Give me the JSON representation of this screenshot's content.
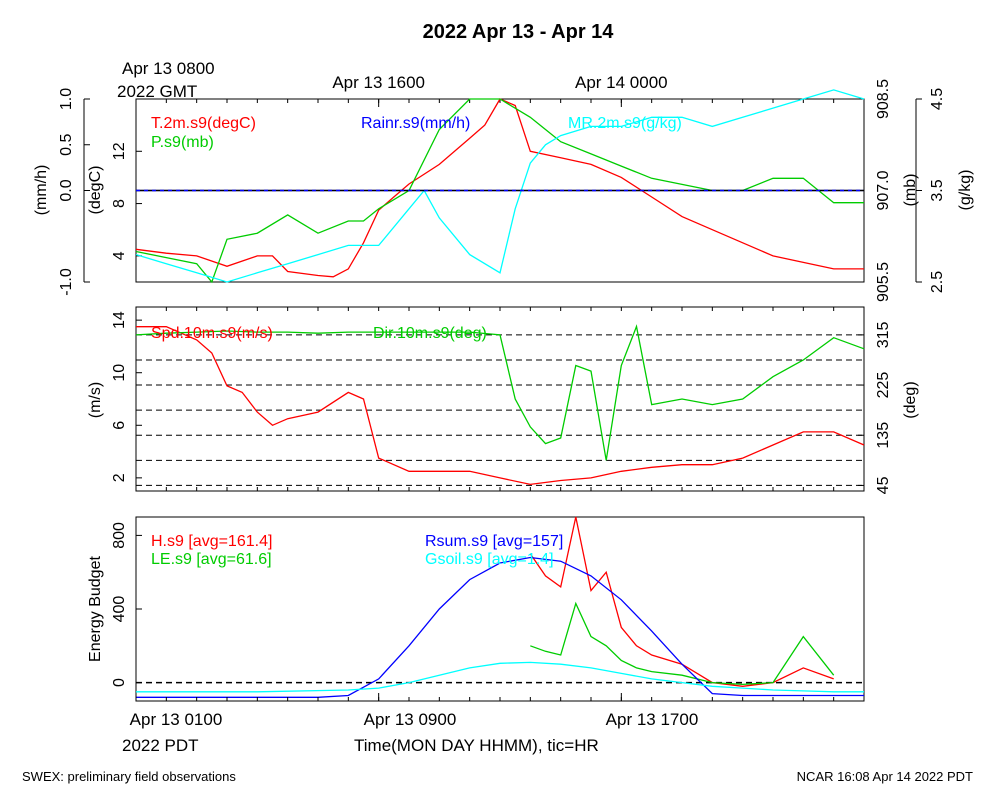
{
  "title": "2022 Apr 13 - Apr 14",
  "top_axis": {
    "start_label": "Apr 13 0800",
    "start_sublabel": "2022 GMT",
    "tick_labels": [
      "Apr 13 1600",
      "Apr 14 0000"
    ]
  },
  "bottom_axis": {
    "tick_labels": [
      "Apr 13 0100",
      "Apr 13 0900",
      "Apr 13 1700"
    ],
    "sublabel": "2022 PDT",
    "xlabel": "Time(MON DAY HHMM), tic=HR"
  },
  "footer": {
    "left": "SWEX: preliminary field observations",
    "right": "NCAR 16:08 Apr 14 2022 PDT"
  },
  "colors": {
    "red": "#ff0000",
    "green": "#00cc00",
    "blue": "#0000ff",
    "cyan": "#00ffff",
    "black": "#000000"
  },
  "chart_data": [
    {
      "type": "line",
      "panel": "top",
      "x_hours_pdt": [
        1,
        25
      ],
      "axes": [
        {
          "side": "left-outer",
          "label": "(mm/h)",
          "range": [
            -1.0,
            1.0
          ],
          "ticks": [
            "-1.0",
            "0.0",
            "0.5",
            "1.0"
          ]
        },
        {
          "side": "left-inner",
          "label": "(degC)",
          "range": [
            2,
            16
          ],
          "ticks": [
            "4",
            "8",
            "12"
          ]
        },
        {
          "side": "right-inner",
          "label": "(mb)",
          "range": [
            905.5,
            908.5
          ],
          "ticks": [
            "905.5",
            "907.0",
            "908.5"
          ]
        },
        {
          "side": "right-outer",
          "label": "(g/kg)",
          "range": [
            2.5,
            4.5
          ],
          "ticks": [
            "2.5",
            "3.5",
            "4.5"
          ]
        }
      ],
      "series": [
        {
          "name": "T.2m.s9(degC)",
          "axis": "degC",
          "x": [
            1,
            2,
            3,
            4,
            5,
            5.5,
            6,
            7,
            7.5,
            8,
            8.5,
            9,
            9.5,
            10,
            11,
            12,
            12.5,
            13,
            13.5,
            14,
            15,
            16,
            17,
            18,
            19,
            20,
            21,
            22,
            23,
            24,
            25
          ],
          "y": [
            4.5,
            4.2,
            4.0,
            3.2,
            4.0,
            4.0,
            2.8,
            2.5,
            2.4,
            3.0,
            5.0,
            7.5,
            8.5,
            9.5,
            11.0,
            13.0,
            14.0,
            16.0,
            15.5,
            12.0,
            11.5,
            11.0,
            10.0,
            8.5,
            7.0,
            6.0,
            5.0,
            4.0,
            3.5,
            3.0,
            3.0
          ]
        },
        {
          "name": "Rainr.s9(mm/h)",
          "axis": "mm/h",
          "x": [
            1,
            25
          ],
          "y": [
            0.0,
            0.0
          ]
        },
        {
          "name": "P.s9(mb)",
          "axis": "mb",
          "x": [
            1,
            2,
            3,
            3.5,
            4,
            5,
            6,
            7,
            8,
            8.5,
            9,
            10,
            11,
            12,
            13,
            14,
            15,
            16,
            17,
            18,
            19,
            20,
            21,
            22,
            23,
            24,
            25
          ],
          "y": [
            906.0,
            905.9,
            905.8,
            905.5,
            906.2,
            906.3,
            906.6,
            906.3,
            906.5,
            906.5,
            906.7,
            907.0,
            908.0,
            908.5,
            908.5,
            908.2,
            907.8,
            907.6,
            907.4,
            907.2,
            907.1,
            907.0,
            907.0,
            907.2,
            907.2,
            906.8,
            906.8
          ]
        },
        {
          "name": "MR.2m.s9(g/kg)",
          "axis": "g/kg",
          "x": [
            1,
            2,
            3,
            4,
            5,
            6,
            7,
            8,
            9,
            10,
            10.5,
            11,
            12,
            13,
            13.5,
            14,
            14.5,
            15,
            16,
            17,
            18,
            19,
            20,
            21,
            22,
            23,
            24,
            25
          ],
          "y": [
            2.8,
            2.7,
            2.6,
            2.5,
            2.6,
            2.7,
            2.8,
            2.9,
            2.9,
            3.3,
            3.5,
            3.2,
            2.8,
            2.6,
            3.3,
            3.8,
            4.0,
            4.1,
            4.2,
            4.2,
            4.3,
            4.3,
            4.2,
            4.3,
            4.4,
            4.5,
            4.6,
            4.5
          ]
        }
      ]
    },
    {
      "type": "line",
      "panel": "middle",
      "x_hours_pdt": [
        1,
        25
      ],
      "axes": [
        {
          "side": "left",
          "label": "(m/s)",
          "range": [
            1,
            15
          ],
          "ticks": [
            "2",
            "6",
            "10",
            "14"
          ]
        },
        {
          "side": "right",
          "label": "(deg)",
          "range": [
            35,
            365
          ],
          "ticks": [
            "45",
            "135",
            "225",
            "315"
          ]
        }
      ],
      "reference_lines_deg": [
        45,
        90,
        135,
        180,
        225,
        270,
        315
      ],
      "series": [
        {
          "name": "Spd.10m.s9(m/s)",
          "axis": "m/s",
          "x": [
            1,
            2,
            3,
            3.5,
            4,
            4.5,
            5,
            5.5,
            6,
            7,
            8,
            8.5,
            9,
            10,
            11,
            12,
            13,
            14,
            15,
            16,
            17,
            18,
            19,
            20,
            21,
            22,
            23,
            24,
            25
          ],
          "y": [
            13.5,
            13.5,
            12.5,
            11.5,
            9.0,
            8.5,
            7.0,
            6.0,
            6.5,
            7.0,
            8.5,
            8.0,
            3.5,
            2.5,
            2.5,
            2.5,
            2.0,
            1.5,
            1.8,
            2.0,
            2.5,
            2.8,
            3.0,
            3.0,
            3.5,
            4.5,
            5.5,
            5.5,
            4.5
          ]
        },
        {
          "name": "Dir.10m.s9(deg)",
          "axis": "deg",
          "x": [
            1,
            2,
            3,
            4,
            5,
            6,
            7,
            8,
            9,
            10,
            11,
            12,
            13,
            13.5,
            14,
            14.5,
            15,
            15.5,
            16,
            16.5,
            17,
            17.5,
            18,
            19,
            20,
            21,
            22,
            23,
            24,
            25
          ],
          "y": [
            315,
            318,
            320,
            322,
            320,
            320,
            318,
            320,
            320,
            320,
            320,
            320,
            315,
            200,
            150,
            120,
            130,
            260,
            250,
            90,
            260,
            330,
            190,
            200,
            190,
            200,
            240,
            270,
            310,
            290
          ]
        }
      ]
    },
    {
      "type": "line",
      "panel": "bottom",
      "x_hours_pdt": [
        1,
        25
      ],
      "axes": [
        {
          "side": "left",
          "label": "Energy Budget",
          "range": [
            -100,
            900
          ],
          "ticks": [
            "0",
            "400",
            "800"
          ]
        }
      ],
      "series": [
        {
          "name": "H.s9 [avg=161.4]",
          "x": [
            14,
            14.5,
            15,
            15.5,
            16,
            16.5,
            17,
            17.5,
            18,
            19,
            20,
            21,
            22,
            23,
            24
          ],
          "y": [
            700,
            580,
            520,
            900,
            500,
            600,
            300,
            200,
            150,
            100,
            0,
            -20,
            0,
            80,
            20
          ]
        },
        {
          "name": "LE.s9 [avg=61.6]",
          "x": [
            14,
            14.5,
            15,
            15.5,
            16,
            16.5,
            17,
            17.5,
            18,
            19,
            20,
            21,
            22,
            23,
            24
          ],
          "y": [
            200,
            170,
            150,
            430,
            250,
            200,
            120,
            80,
            60,
            40,
            0,
            -10,
            0,
            250,
            40
          ]
        },
        {
          "name": "Rsum.s9 [avg=157]",
          "x": [
            1,
            3,
            5,
            7,
            8,
            9,
            10,
            11,
            12,
            13,
            14,
            15,
            16,
            17,
            18,
            19,
            20,
            21,
            22,
            23,
            24,
            25
          ],
          "y": [
            -80,
            -80,
            -80,
            -80,
            -70,
            20,
            200,
            400,
            560,
            650,
            680,
            660,
            580,
            450,
            280,
            100,
            -60,
            -70,
            -70,
            -70,
            -70,
            -70
          ]
        },
        {
          "name": "Gsoil.s9 [avg=1.4]",
          "x": [
            1,
            5,
            8,
            9,
            10,
            11,
            12,
            13,
            14,
            15,
            16,
            17,
            18,
            19,
            20,
            21,
            22,
            23,
            24,
            25
          ],
          "y": [
            -50,
            -50,
            -40,
            -30,
            0,
            40,
            80,
            105,
            110,
            100,
            80,
            50,
            20,
            0,
            -20,
            -30,
            -40,
            -45,
            -50,
            -50
          ]
        }
      ]
    }
  ]
}
